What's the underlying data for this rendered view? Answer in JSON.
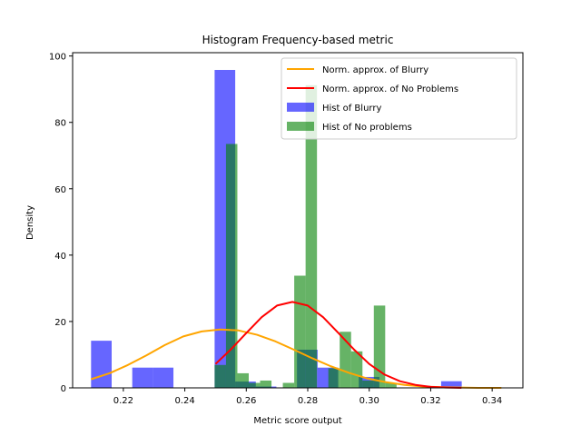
{
  "chart_data": {
    "type": "bar",
    "title": "Histogram Frequency-based metric",
    "xlabel": "Metric score output",
    "ylabel": "Density",
    "xlim": [
      0.2035,
      0.35
    ],
    "ylim": [
      0,
      101
    ],
    "xticks": [
      "0.22",
      "0.24",
      "0.26",
      "0.28",
      "0.30",
      "0.32",
      "0.34"
    ],
    "yticks": [
      "0",
      "20",
      "40",
      "60",
      "80",
      "100"
    ],
    "legend_placement": "top-right",
    "grid": false,
    "series": [
      {
        "name": "Hist of Blurry",
        "kind": "hist",
        "color": "#0000ff",
        "alpha": 0.6,
        "bins": [
          {
            "x0": 0.2095,
            "x1": 0.2162,
            "value": 14.2
          },
          {
            "x0": 0.2229,
            "x1": 0.2296,
            "value": 6.1
          },
          {
            "x0": 0.2296,
            "x1": 0.2363,
            "value": 6.1
          },
          {
            "x0": 0.2497,
            "x1": 0.2564,
            "value": 95.8
          },
          {
            "x0": 0.2564,
            "x1": 0.2631,
            "value": 1.9
          },
          {
            "x0": 0.2631,
            "x1": 0.2698,
            "value": 0.4
          },
          {
            "x0": 0.2765,
            "x1": 0.2832,
            "value": 11.5
          },
          {
            "x0": 0.2832,
            "x1": 0.2899,
            "value": 6.1
          },
          {
            "x0": 0.2966,
            "x1": 0.3033,
            "value": 3.3
          },
          {
            "x0": 0.3234,
            "x1": 0.3301,
            "value": 2.0
          }
        ]
      },
      {
        "name": "Hist of No problems",
        "kind": "hist",
        "color": "#008000",
        "alpha": 0.6,
        "bins": [
          {
            "x0": 0.2497,
            "x1": 0.2534,
            "value": 6.9
          },
          {
            "x0": 0.2534,
            "x1": 0.2571,
            "value": 73.5
          },
          {
            "x0": 0.2571,
            "x1": 0.2608,
            "value": 4.4
          },
          {
            "x0": 0.2608,
            "x1": 0.2645,
            "value": 1.5
          },
          {
            "x0": 0.2645,
            "x1": 0.2682,
            "value": 2.2
          },
          {
            "x0": 0.2719,
            "x1": 0.2756,
            "value": 1.5
          },
          {
            "x0": 0.2756,
            "x1": 0.2793,
            "value": 33.8
          },
          {
            "x0": 0.2793,
            "x1": 0.283,
            "value": 91.2
          },
          {
            "x0": 0.2867,
            "x1": 0.2904,
            "value": 5.9
          },
          {
            "x0": 0.2904,
            "x1": 0.2941,
            "value": 16.9
          },
          {
            "x0": 0.2941,
            "x1": 0.2978,
            "value": 11.0
          },
          {
            "x0": 0.2978,
            "x1": 0.3015,
            "value": 2.2
          },
          {
            "x0": 0.3015,
            "x1": 0.3052,
            "value": 24.8
          },
          {
            "x0": 0.3052,
            "x1": 0.3089,
            "value": 1.5
          }
        ]
      },
      {
        "name": "Norm. approx. of Blurry",
        "kind": "line",
        "color": "#ffa500",
        "x": [
          0.2095,
          0.2155,
          0.2215,
          0.2275,
          0.2335,
          0.2395,
          0.2455,
          0.2515,
          0.2575,
          0.2635,
          0.2695,
          0.2755,
          0.2815,
          0.2875,
          0.2935,
          0.2995,
          0.3055,
          0.3115,
          0.3175,
          0.3235,
          0.3295,
          0.3355,
          0.343
        ],
        "y": [
          2.6,
          4.4,
          6.9,
          9.8,
          12.9,
          15.5,
          17.0,
          17.6,
          17.3,
          16.0,
          14.0,
          11.5,
          8.9,
          6.5,
          4.5,
          2.8,
          1.7,
          0.9,
          0.4,
          0.2,
          0.1,
          0.0,
          0.0
        ]
      },
      {
        "name": "Norm. approx. of No Problems",
        "kind": "line",
        "color": "#ff0000",
        "x": [
          0.25,
          0.255,
          0.26,
          0.265,
          0.27,
          0.275,
          0.28,
          0.285,
          0.29,
          0.295,
          0.3,
          0.305,
          0.31,
          0.315,
          0.32,
          0.325,
          0.33
        ],
        "y": [
          7.2,
          11.6,
          16.5,
          21.3,
          24.8,
          25.9,
          24.8,
          21.3,
          16.5,
          11.6,
          7.2,
          4.0,
          2.0,
          0.9,
          0.3,
          0.1,
          0.0
        ]
      }
    ]
  }
}
